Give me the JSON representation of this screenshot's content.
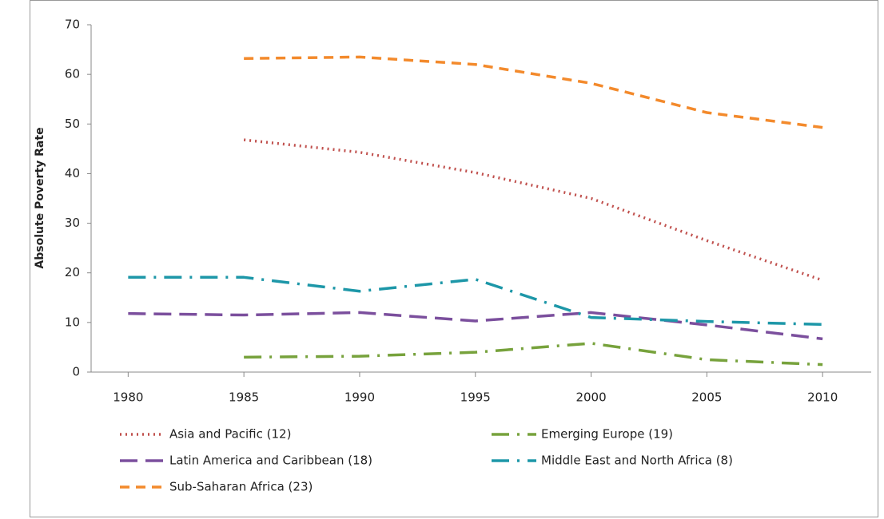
{
  "chart_data": {
    "type": "line",
    "y_label": "Absolute Poverty Rate",
    "x": [
      1980,
      1985,
      1990,
      1995,
      2000,
      2005,
      2010
    ],
    "xlim": [
      1978.4,
      2012.1
    ],
    "xticks": [
      1980,
      1985,
      1990,
      1995,
      2000,
      2005,
      2010
    ],
    "ylim": [
      0,
      70
    ],
    "yticks": [
      0,
      10,
      20,
      30,
      40,
      50,
      60,
      70
    ],
    "series": [
      {
        "name": "Asia and Pacific (12)",
        "color": "#c0504d",
        "dash": "dotted",
        "values": [
          null,
          46.8,
          44.3,
          40.2,
          35,
          26.5,
          18.5
        ]
      },
      {
        "name": "Emerging Europe (19)",
        "color": "#77a23c",
        "dash": "long-dash-dot",
        "values": [
          null,
          3,
          3.2,
          4,
          5.8,
          2.5,
          1.5
        ]
      },
      {
        "name": "Latin America and Caribbean (18)",
        "color": "#7b4f9d",
        "dash": "long-dash",
        "values": [
          11.8,
          11.5,
          12,
          10.3,
          12,
          9.5,
          6.7
        ]
      },
      {
        "name": "Middle East and North Africa (8)",
        "color": "#1d97a8",
        "dash": "long-dash-dot",
        "values": [
          19.1,
          19.1,
          16.3,
          18.7,
          11,
          10.2,
          9.6
        ]
      },
      {
        "name": "Sub-Saharan Africa (23)",
        "color": "#f38a2c",
        "dash": "dashed",
        "values": [
          null,
          63.2,
          63.5,
          62,
          58.2,
          52.3,
          49.3
        ]
      }
    ]
  }
}
